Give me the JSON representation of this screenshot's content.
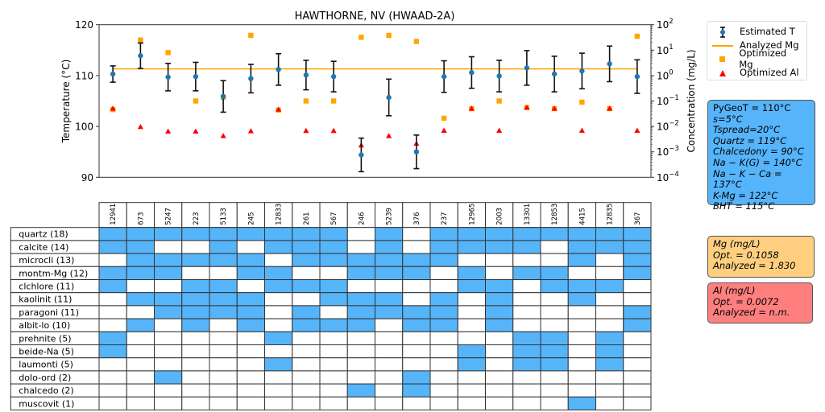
{
  "chart_data": [
    {
      "type": "scatter",
      "title": "HAWTHORNE, NV (HWAAD-2A)",
      "ylabel": "Temperature (°C)",
      "ylabel_right": "Concentration (mg/L)",
      "ylim": [
        90,
        120
      ],
      "yticks": [
        "120",
        "110",
        "100",
        "90"
      ],
      "y2lim_log10": [
        -4,
        2
      ],
      "y2ticks": [
        {
          "base": "10",
          "exp": "2"
        },
        {
          "base": "10",
          "exp": "1"
        },
        {
          "base": "10",
          "exp": "0"
        },
        {
          "base": "10",
          "exp": "−1"
        },
        {
          "base": "10",
          "exp": "−2"
        },
        {
          "base": "10",
          "exp": "−3"
        },
        {
          "base": "10",
          "exp": "−4"
        }
      ],
      "y2tick_values": [
        2,
        1,
        0,
        -1,
        -2,
        -3,
        -4
      ],
      "categories": [
        "12941",
        "673",
        "5247",
        "223",
        "5133",
        "245",
        "12833",
        "261",
        "567",
        "246",
        "5239",
        "376",
        "237",
        "12965",
        "2003",
        "13301",
        "12853",
        "4415",
        "12835",
        "367"
      ],
      "series": [
        {
          "name": "Estimated T",
          "axis": "left",
          "color": "#1f77b4",
          "values": [
            110.3,
            113.9,
            109.7,
            109.8,
            105.9,
            109.4,
            111.2,
            110.1,
            109.8,
            94.4,
            105.7,
            95.0,
            109.8,
            110.6,
            109.9,
            111.5,
            110.3,
            110.9,
            112.3,
            109.8
          ],
          "errors": [
            1.6,
            2.5,
            2.7,
            2.8,
            3.1,
            2.8,
            3.1,
            2.9,
            3.0,
            3.3,
            3.6,
            3.3,
            3.1,
            3.1,
            3.1,
            3.4,
            3.5,
            3.5,
            3.5,
            3.3
          ]
        },
        {
          "name": "Analyzed Mg",
          "axis": "right",
          "type": "line",
          "color": "#ffa500",
          "value": 1.83
        },
        {
          "name": "Optimized Mg",
          "axis": "right",
          "color": "#ffa500",
          "values": [
            0.046,
            25,
            8,
            0.1,
            0.14,
            38,
            0.044,
            0.1,
            0.1,
            32,
            38,
            22,
            0.021,
            0.05,
            0.1,
            0.055,
            0.05,
            0.09,
            0.05,
            35
          ]
        },
        {
          "name": "Optimized Al",
          "axis": "right",
          "color": "#ff0000",
          "values": [
            0.05,
            0.0095,
            0.0063,
            0.0063,
            0.0042,
            0.0065,
            0.046,
            0.0067,
            0.0067,
            0.0018,
            0.0042,
            0.0021,
            0.0068,
            0.05,
            0.0068,
            0.055,
            0.05,
            0.0068,
            0.05,
            0.0068
          ]
        }
      ],
      "legend": {
        "position": "right",
        "entries": [
          "Estimated T",
          "Analyzed Mg",
          "Optimized Mg",
          "Optimized Al"
        ]
      }
    },
    {
      "type": "table",
      "columns": [
        "12941",
        "673",
        "5247",
        "223",
        "5133",
        "245",
        "12833",
        "261",
        "567",
        "246",
        "5239",
        "376",
        "237",
        "12965",
        "2003",
        "13301",
        "12853",
        "4415",
        "12835",
        "367"
      ],
      "fill_color": "#56b4f9",
      "rows": [
        {
          "label": "quartz (18)",
          "cells": [
            1,
            1,
            1,
            1,
            1,
            1,
            1,
            1,
            1,
            0,
            1,
            0,
            1,
            1,
            1,
            1,
            1,
            1,
            1,
            1
          ]
        },
        {
          "label": "calcite (14)",
          "cells": [
            1,
            1,
            0,
            0,
            1,
            0,
            1,
            1,
            1,
            0,
            1,
            0,
            1,
            1,
            1,
            1,
            0,
            1,
            1,
            1
          ]
        },
        {
          "label": "microcli (13)",
          "cells": [
            0,
            1,
            1,
            1,
            1,
            1,
            0,
            1,
            1,
            1,
            1,
            1,
            1,
            0,
            0,
            0,
            0,
            1,
            0,
            1
          ]
        },
        {
          "label": "montm-Mg (12)",
          "cells": [
            1,
            1,
            1,
            0,
            0,
            1,
            1,
            0,
            0,
            1,
            1,
            1,
            0,
            1,
            0,
            1,
            1,
            0,
            0,
            1
          ]
        },
        {
          "label": "clchlore (11)",
          "cells": [
            1,
            0,
            0,
            1,
            1,
            0,
            1,
            1,
            1,
            0,
            0,
            0,
            0,
            1,
            1,
            0,
            1,
            1,
            1,
            0
          ]
        },
        {
          "label": "kaolinit (11)",
          "cells": [
            0,
            1,
            1,
            1,
            1,
            1,
            0,
            0,
            1,
            1,
            1,
            0,
            1,
            0,
            1,
            0,
            0,
            1,
            0,
            0
          ]
        },
        {
          "label": "paragoni (11)",
          "cells": [
            0,
            0,
            1,
            1,
            1,
            1,
            0,
            1,
            0,
            1,
            1,
            1,
            1,
            0,
            1,
            0,
            0,
            0,
            0,
            1
          ]
        },
        {
          "label": "albit-lo (10)",
          "cells": [
            0,
            1,
            0,
            1,
            0,
            1,
            0,
            1,
            1,
            1,
            0,
            1,
            1,
            0,
            1,
            0,
            0,
            0,
            0,
            1
          ]
        },
        {
          "label": "prehnite (5)",
          "cells": [
            1,
            0,
            0,
            0,
            0,
            0,
            1,
            0,
            0,
            0,
            0,
            0,
            0,
            0,
            0,
            1,
            1,
            0,
            1,
            0
          ]
        },
        {
          "label": "beide-Na (5)",
          "cells": [
            1,
            0,
            0,
            0,
            0,
            0,
            0,
            0,
            0,
            0,
            0,
            0,
            0,
            1,
            0,
            1,
            1,
            0,
            1,
            0
          ]
        },
        {
          "label": "laumonti (5)",
          "cells": [
            0,
            0,
            0,
            0,
            0,
            0,
            1,
            0,
            0,
            0,
            0,
            0,
            0,
            1,
            0,
            1,
            1,
            0,
            1,
            0
          ]
        },
        {
          "label": "dolo-ord (2)",
          "cells": [
            0,
            0,
            1,
            0,
            0,
            0,
            0,
            0,
            0,
            0,
            0,
            1,
            0,
            0,
            0,
            0,
            0,
            0,
            0,
            0
          ]
        },
        {
          "label": "chalcedo (2)",
          "cells": [
            0,
            0,
            0,
            0,
            0,
            0,
            0,
            0,
            0,
            1,
            0,
            1,
            0,
            0,
            0,
            0,
            0,
            0,
            0,
            0
          ]
        },
        {
          "label": "muscovit (1)",
          "cells": [
            0,
            0,
            0,
            0,
            0,
            0,
            0,
            0,
            0,
            0,
            0,
            0,
            0,
            0,
            0,
            0,
            0,
            1,
            0,
            0
          ]
        }
      ]
    }
  ],
  "legend": {
    "items": [
      "Estimated T",
      "Analyzed Mg",
      "Optimized Mg",
      "Optimized Al"
    ]
  },
  "temps_box": {
    "color": "#56b4fa",
    "lines": [
      "PyGeoT = 110°C",
      "s=5°C",
      "Tspread=20°C",
      "Quartz = 119°C",
      "Chalcedony = 90°C",
      "Na − K(G) = 140°C",
      "Na − K − Ca = 137°C",
      "K-Mg = 122°C",
      "BHT = 115°C"
    ]
  },
  "mg_box": {
    "color": "#ffcf7f",
    "title": "Mg (mg/L)",
    "opt": "Opt. = 0.1058",
    "analyzed": "Analyzed = 1.830"
  },
  "al_box": {
    "color": "#ff7f7f",
    "title": "Al (mg/L)",
    "opt": "Opt. = 0.0072",
    "analyzed": "Analyzed = n.m."
  }
}
